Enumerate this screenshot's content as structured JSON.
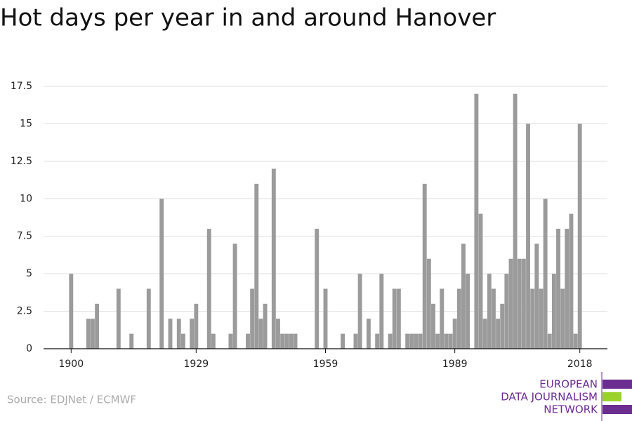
{
  "chart_data": {
    "type": "bar",
    "title": "Hot days per year in and around Hanover",
    "x": [
      1900,
      1901,
      1902,
      1903,
      1904,
      1905,
      1906,
      1907,
      1908,
      1909,
      1910,
      1911,
      1912,
      1913,
      1914,
      1915,
      1916,
      1917,
      1918,
      1919,
      1920,
      1921,
      1922,
      1923,
      1924,
      1925,
      1926,
      1927,
      1928,
      1929,
      1930,
      1931,
      1932,
      1933,
      1934,
      1935,
      1936,
      1937,
      1938,
      1939,
      1940,
      1941,
      1942,
      1943,
      1944,
      1945,
      1946,
      1947,
      1948,
      1949,
      1950,
      1951,
      1952,
      1953,
      1954,
      1955,
      1956,
      1957,
      1958,
      1959,
      1960,
      1961,
      1962,
      1963,
      1964,
      1965,
      1966,
      1967,
      1968,
      1969,
      1970,
      1971,
      1972,
      1973,
      1974,
      1975,
      1976,
      1977,
      1978,
      1979,
      1980,
      1981,
      1982,
      1983,
      1984,
      1985,
      1986,
      1987,
      1988,
      1989,
      1990,
      1991,
      1992,
      1993,
      1994,
      1995,
      1996,
      1997,
      1998,
      1999,
      2000,
      2001,
      2002,
      2003,
      2004,
      2005,
      2006,
      2007,
      2008,
      2009,
      2010,
      2011,
      2012,
      2013,
      2014,
      2015,
      2016,
      2017,
      2018
    ],
    "values": [
      5,
      0,
      0,
      0,
      2,
      2,
      3,
      0,
      0,
      0,
      0,
      4,
      0,
      0,
      1,
      0,
      0,
      0,
      4,
      0,
      0,
      10,
      0,
      2,
      0,
      2,
      1,
      0,
      2,
      3,
      0,
      0,
      8,
      1,
      0,
      0,
      0,
      1,
      7,
      0,
      0,
      1,
      4,
      11,
      2,
      3,
      0,
      12,
      2,
      1,
      1,
      1,
      1,
      0,
      0,
      0,
      0,
      8,
      0,
      4,
      0,
      0,
      0,
      1,
      0,
      0,
      1,
      5,
      0,
      2,
      0,
      1,
      5,
      0,
      1,
      4,
      4,
      0,
      1,
      1,
      1,
      1,
      11,
      6,
      3,
      1,
      4,
      1,
      1,
      2,
      4,
      7,
      5,
      0,
      17,
      9,
      2,
      5,
      4,
      2,
      3,
      5,
      6,
      17,
      6,
      6,
      15,
      4,
      7,
      4,
      10,
      1,
      5,
      8,
      4,
      8,
      9,
      1,
      15
    ],
    "color": "#9b9b9b",
    "xlim": [
      1893.6,
      2024.4
    ],
    "xticks": [
      1900,
      1929,
      1959,
      1989,
      2018
    ],
    "ylim": [
      0,
      17.5
    ],
    "yticks": [
      0,
      2.5,
      5,
      7.5,
      10,
      12.5,
      15,
      17.5
    ],
    "grid": true
  },
  "source": "Source: EDJNet / ECMWF",
  "logo": {
    "lines": [
      "EUROPEAN",
      "DATA JOURNALISM",
      "NETWORK"
    ]
  }
}
